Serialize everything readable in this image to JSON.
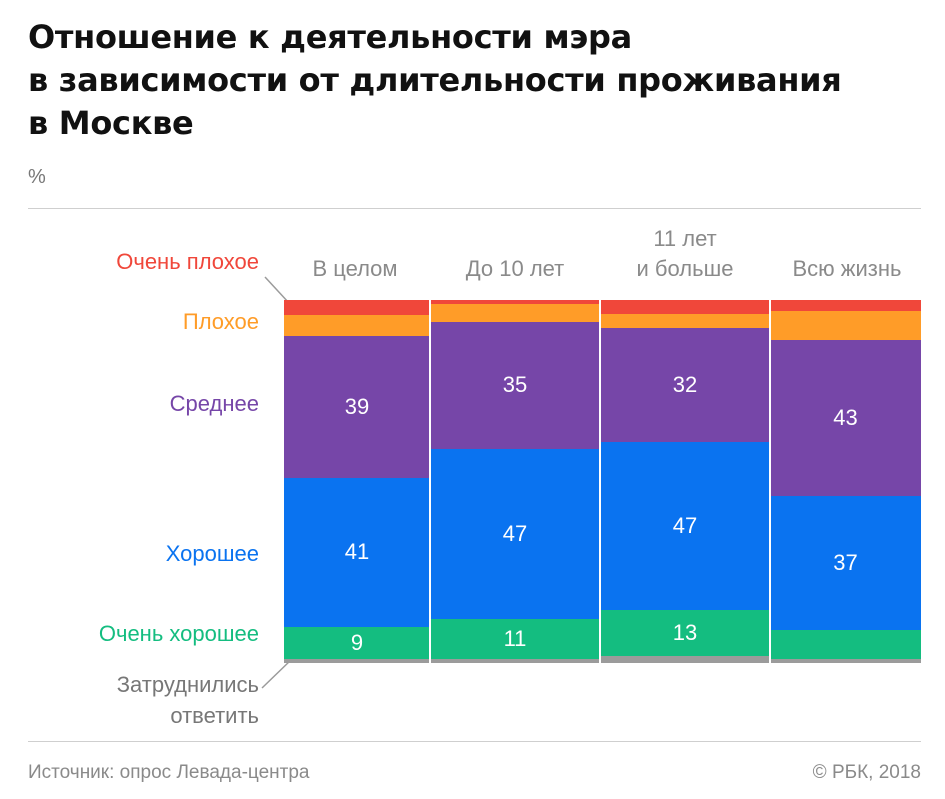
{
  "title": {
    "line1": "Отношение к деятельности мэра",
    "line2": "в зависимости от длительности проживания",
    "line3": "в Москве"
  },
  "unit": "%",
  "legend": {
    "very_bad": "Очень плохое",
    "bad": "Плохое",
    "average": "Среднее",
    "good": "Хорошее",
    "very_good": "Очень хорошее",
    "hard_to_say_1": "Затруднились",
    "hard_to_say_2": "ответить"
  },
  "columns": {
    "c0": {
      "l1": "В целом",
      "l2": ""
    },
    "c1": {
      "l1": "До 10 лет",
      "l2": ""
    },
    "c2": {
      "l1": "11 лет",
      "l2": "и больше"
    },
    "c3": {
      "l1": "Всю жизнь",
      "l2": ""
    }
  },
  "labels": {
    "c0": {
      "average": "39",
      "good": "41",
      "very_good": "9"
    },
    "c1": {
      "average": "35",
      "good": "47",
      "very_good": "11"
    },
    "c2": {
      "average": "32",
      "good": "47",
      "very_good": "13"
    },
    "c3": {
      "average": "43",
      "good": "37",
      "very_good": ""
    }
  },
  "footer": {
    "source": "Источник: опрос Левада-центра",
    "copyright": "© РБК, 2018"
  },
  "colors": {
    "very_bad": "#f0473a",
    "bad": "#ff9c28",
    "average": "#7646a8",
    "good": "#0a73f0",
    "very_good": "#14bd80",
    "hard_to_say": "#9b9b9b"
  },
  "chart_data": {
    "type": "bar",
    "stacked": true,
    "categories": [
      "В целом",
      "До 10 лет",
      "11 лет и больше",
      "Всю жизнь"
    ],
    "series": [
      {
        "name": "Затруднились ответить",
        "values": [
          1,
          1,
          2,
          1
        ]
      },
      {
        "name": "Очень хорошее",
        "values": [
          9,
          11,
          13,
          8
        ]
      },
      {
        "name": "Хорошее",
        "values": [
          41,
          47,
          47,
          37
        ]
      },
      {
        "name": "Среднее",
        "values": [
          39,
          35,
          32,
          43
        ]
      },
      {
        "name": "Плохое",
        "values": [
          6,
          5,
          4,
          8
        ]
      },
      {
        "name": "Очень плохое",
        "values": [
          4,
          1,
          4,
          3
        ]
      }
    ],
    "ylim": [
      0,
      100
    ],
    "legend_position": "left",
    "grid": false
  }
}
